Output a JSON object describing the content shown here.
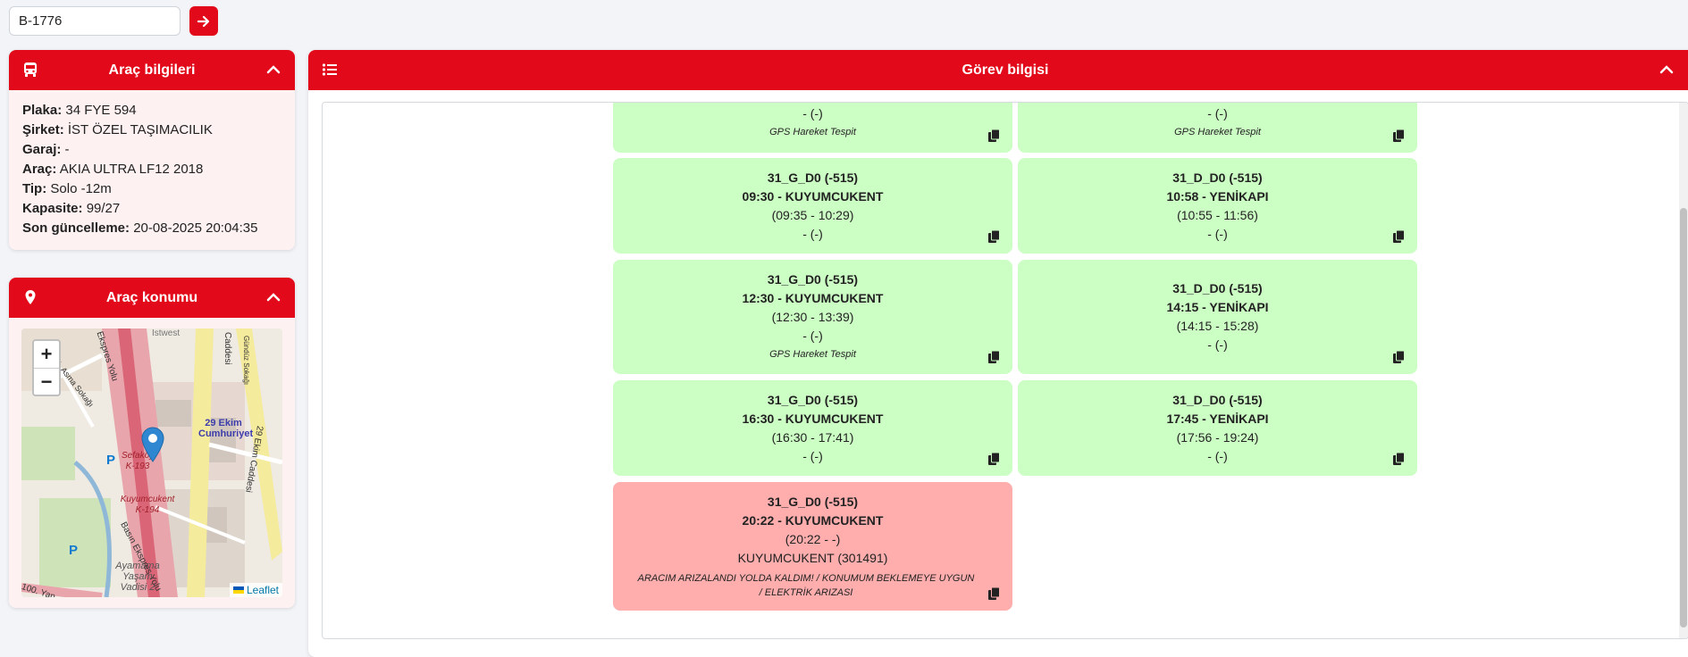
{
  "search": {
    "value": "B-1776"
  },
  "vehicle_info": {
    "title": "Araç bilgileri",
    "fields": [
      {
        "label": "Plaka:",
        "value": "34 FYE 594"
      },
      {
        "label": "Şirket:",
        "value": "İST ÖZEL TAŞIMACILIK"
      },
      {
        "label": "Garaj:",
        "value": "-"
      },
      {
        "label": "Araç:",
        "value": "AKIA ULTRA LF12 2018"
      },
      {
        "label": "Tip:",
        "value": "Solo -12m"
      },
      {
        "label": "Kapasite:",
        "value": "99/27"
      },
      {
        "label": "Son güncelleme:",
        "value": "20-08-2025 20:04:35"
      }
    ]
  },
  "vehicle_location": {
    "title": "Araç konumu",
    "map_labels": {
      "place1": "29 Ekim Cumhuriyet",
      "stop1": "Sefaköy K-193",
      "stop2": "Kuyumcukent K-194",
      "place2": "Ayamama Yaşam Vadisi 2",
      "road1": "Basın Ekspres Yolu",
      "road2": "29 Ekim Caddesi",
      "road3": "Ekspres Yolu",
      "road4": "1. Asma Sokağı",
      "road5": "Gündüz Sokağı",
      "road6": "Caddesi",
      "road7": "İstwest",
      "road8": "100. Yan",
      "parking": "P"
    },
    "zoom_in": "+",
    "zoom_out": "−",
    "attribution": "Leaflet"
  },
  "task_info": {
    "title": "Görev bilgisi",
    "tiles": [
      {
        "lines": [
          "- (-)"
        ],
        "note": "GPS Hareket Tespit",
        "status": "green"
      },
      {
        "lines": [
          "- (-)"
        ],
        "note": "GPS Hareket Tespit",
        "status": "green"
      },
      {
        "route": "31_G_D0 (-515)",
        "dep": "09:30 - KUYUMCUKENT",
        "time": "(09:35 - 10:29)",
        "lines": [
          "- (-)"
        ],
        "note": "",
        "status": "green"
      },
      {
        "route": "31_D_D0 (-515)",
        "dep": "10:58 - YENİKAPI",
        "time": "(10:55 - 11:56)",
        "lines": [
          "- (-)"
        ],
        "note": "",
        "status": "green"
      },
      {
        "route": "31_G_D0 (-515)",
        "dep": "12:30 - KUYUMCUKENT",
        "time": "(12:30 - 13:39)",
        "lines": [
          "- (-)"
        ],
        "note": "GPS Hareket Tespit",
        "status": "green"
      },
      {
        "route": "31_D_D0 (-515)",
        "dep": "14:15 - YENİKAPI",
        "time": "(14:15 - 15:28)",
        "lines": [
          "- (-)"
        ],
        "note": "",
        "status": "green"
      },
      {
        "route": "31_G_D0 (-515)",
        "dep": "16:30 - KUYUMCUKENT",
        "time": "(16:30 - 17:41)",
        "lines": [
          "- (-)"
        ],
        "note": "",
        "status": "green"
      },
      {
        "route": "31_D_D0 (-515)",
        "dep": "17:45 - YENİKAPI",
        "time": "(17:56 - 19:24)",
        "lines": [
          "- (-)"
        ],
        "note": "",
        "status": "green"
      },
      {
        "route": "31_G_D0 (-515)",
        "dep": "20:22 - KUYUMCUKENT",
        "time": "(20:22 - -)",
        "lines": [
          "KUYUMCUKENT (301491)"
        ],
        "note": "ARACIM ARIZALANDI YOLDA KALDIM! / KONUMUM BEKLEMEYE UYGUN / ELEKTRİK ARIZASI",
        "status": "red"
      }
    ]
  },
  "colors": {
    "accent": "#e20a1a",
    "tile_green": "#ccffc4",
    "tile_red": "#ffadad"
  }
}
